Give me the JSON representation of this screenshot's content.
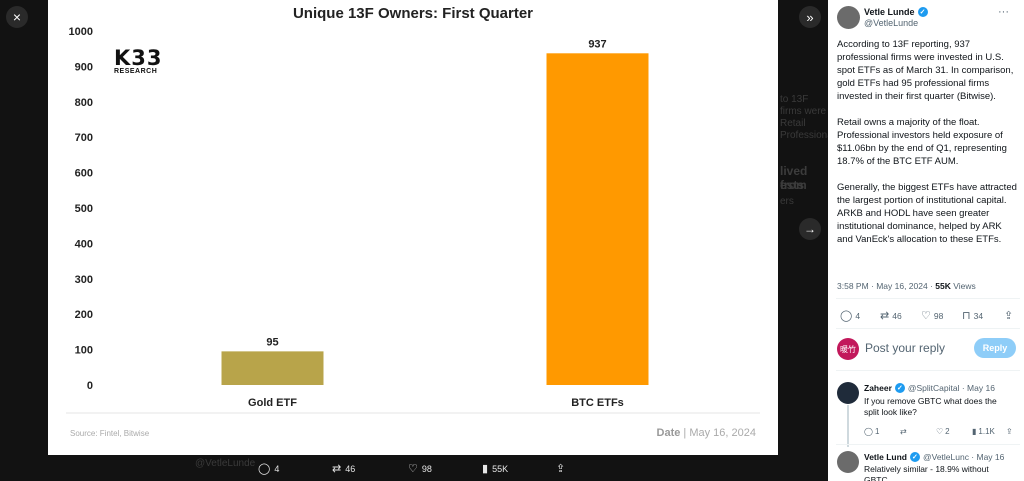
{
  "chart_data": {
    "type": "bar",
    "title": "Unique 13F Owners: First Quarter",
    "categories": [
      "Gold ETF",
      "BTC ETFs"
    ],
    "values": [
      95,
      937
    ],
    "data_labels": [
      "95",
      "937"
    ],
    "colors": [
      "#b8a44a",
      "#ff9900"
    ],
    "ylim": [
      0,
      1000
    ],
    "yticks": [
      "0",
      "100",
      "200",
      "300",
      "400",
      "500",
      "600",
      "700",
      "800",
      "900",
      "1000"
    ],
    "xlabel": "",
    "ylabel": "",
    "grid": false
  },
  "chart_card": {
    "logo_main": "K33",
    "logo_sub": "RESEARCH",
    "source": "Source:  Fintel, Bitwise",
    "date_label": "Date",
    "date_value": "| May 16, 2024"
  },
  "viewer": {
    "close_icon": "×",
    "collapse_icon": "»",
    "next_icon": "→"
  },
  "image_actions": {
    "replies": "4",
    "reposts": "46",
    "likes": "98",
    "views": "55K"
  },
  "background_ghost": {
    "line1": "@VetleLunde",
    "line2": "to 13F",
    "line3": "firms were",
    "line4": "Retail",
    "line5": "Professional",
    "line6": "lived from",
    "line7": "ests",
    "line8": "ers"
  },
  "tweet": {
    "author_name": "Vetle Lunde",
    "author_handle": "@VetleLunde",
    "text": "According to 13F reporting, 937 professional firms were invested in U.S. spot ETFs as of March 31. In comparison, gold ETFs had 95 professional firms invested in their first quarter (Bitwise).\n\nRetail owns a majority of the float. Professional investors held exposure of $11.06bn by the end of Q1, representing 18.7% of the BTC ETF AUM.\n\nGenerally, the biggest ETFs have attracted the largest portion of institutional capital. ARKB and HODL have seen greater institutional dominance, helped by ARK and VanEck's allocation to these ETFs.",
    "time": "3:58 PM · May 16, 2024 · ",
    "views": "55K",
    "views_label": " Views",
    "stats": {
      "replies": "4",
      "reposts": "46",
      "likes": "98",
      "bookmarks": "34"
    }
  },
  "reply_box": {
    "avatar_text": "暖竹",
    "placeholder": "Post your reply",
    "button": "Reply"
  },
  "replies": [
    {
      "name": "Zaheer",
      "handle": "@SplitCapital · May 16",
      "text": "If you remove GBTC what does the split look like?",
      "stats": {
        "replies": "1",
        "reposts": "",
        "likes": "2",
        "views": "1.1K"
      }
    },
    {
      "name": "Vetle Lund",
      "handle": "@VetleLunc · May 16",
      "text": "Relatively similar - 18.9% without GBTC"
    }
  ],
  "colors": {
    "accent": "#1d9bf0",
    "btc": "#ff9900",
    "gold": "#b8a44a"
  }
}
